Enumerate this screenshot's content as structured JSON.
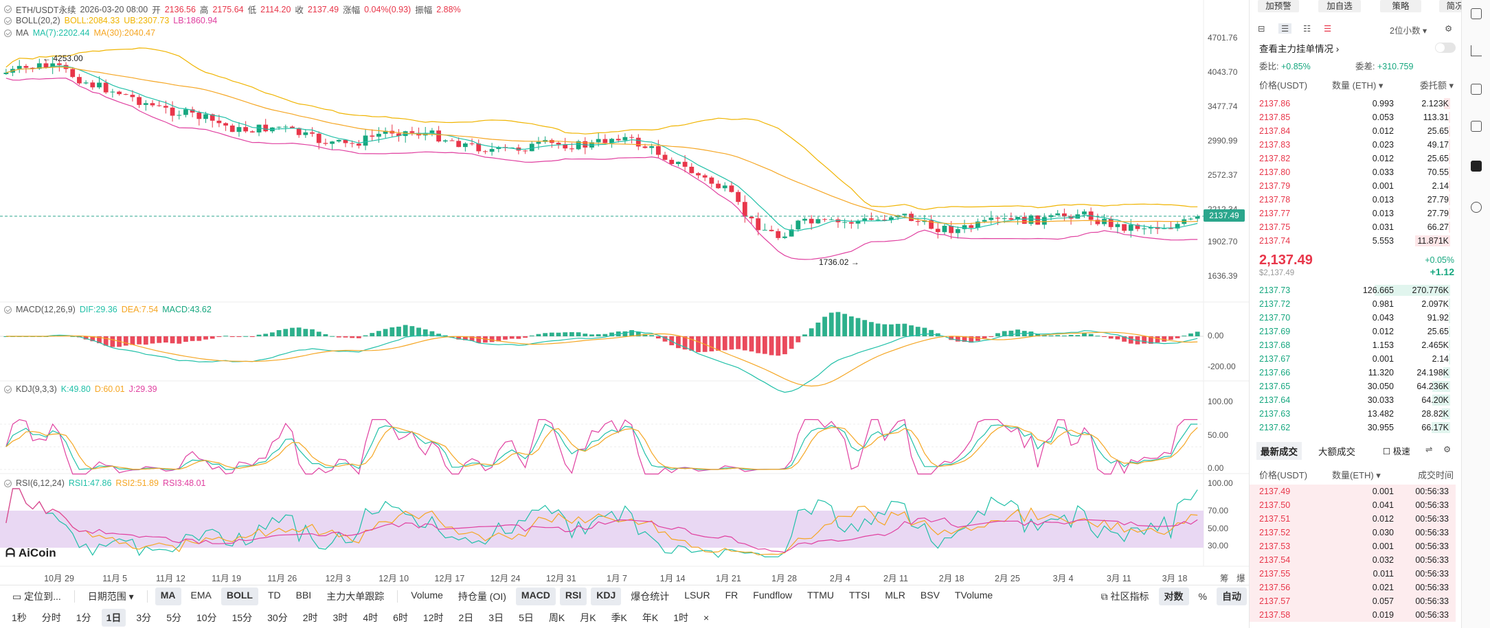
{
  "header": {
    "symbol": "ETH/USDT永续",
    "datetime": "2026-03-20 08:00",
    "open_label": "开",
    "open": "2136.56",
    "high_label": "高",
    "high": "2175.64",
    "low_label": "低",
    "low": "2114.20",
    "close_label": "收",
    "close": "2137.49",
    "change_label": "涨幅",
    "change": "0.04%(0.93)",
    "amplitude_label": "振幅",
    "amplitude": "2.88%"
  },
  "indicators": {
    "boll": {
      "name": "BOLL(20,2)",
      "mid": "BOLL:2084.33",
      "ub": "UB:2307.73",
      "lb": "LB:1860.94"
    },
    "ma": {
      "name": "MA",
      "ma7": "MA(7):2202.44",
      "ma30": "MA(30):2040.47"
    },
    "macd": {
      "name": "MACD(12,26,9)",
      "dif": "DIF:29.36",
      "dea": "DEA:7.54",
      "macd": "MACD:43.62"
    },
    "kdj": {
      "name": "KDJ(9,3,3)",
      "k": "K:49.80",
      "d": "D:60.01",
      "j": "J:29.39"
    },
    "rsi": {
      "name": "RSI(6,12,24)",
      "rsi1": "RSI1:47.86",
      "rsi2": "RSI2:51.89",
      "rsi3": "RSI3:48.01"
    }
  },
  "price_axis": [
    "4701.76",
    "4043.70",
    "3477.74",
    "2990.99",
    "2572.37",
    "2212.34",
    "1902.70",
    "1636.39"
  ],
  "current_price_tag": "2137.49",
  "annotations": {
    "high": "4253.00",
    "low": "1736.02"
  },
  "macd_axis": [
    "0.00",
    "-200.00"
  ],
  "kdj_axis": [
    "100.00",
    "50.00",
    "0.00"
  ],
  "rsi_axis": [
    "100.00",
    "70.00",
    "50.00",
    "30.00"
  ],
  "dates": [
    "10月 29",
    "11月 5",
    "11月 12",
    "11月 19",
    "11月 26",
    "12月 3",
    "12月 10",
    "12月 17",
    "12月 24",
    "12月 31",
    "1月 7",
    "1月 14",
    "1月 21",
    "1月 28",
    "2月 4",
    "2月 11",
    "2月 18",
    "2月 25",
    "3月 4",
    "3月 11",
    "3月 18"
  ],
  "axis_corner": [
    "筹",
    "爆"
  ],
  "logo": "AiCoin",
  "colors": {
    "up": "#16a77f",
    "down": "#e8364a",
    "boll_mid": "#f0b400",
    "boll_band": "#e040a0",
    "ma7": "#21c0a8",
    "ma30": "#f5a623",
    "rsi_band": "#e9d8f3"
  },
  "toolbar1": {
    "locate": "定位到...",
    "range": "日期范围",
    "main_inds": [
      {
        "label": "MA",
        "on": true
      },
      {
        "label": "EMA",
        "on": false
      },
      {
        "label": "BOLL",
        "on": true
      },
      {
        "label": "TD",
        "on": false
      },
      {
        "label": "BBI",
        "on": false
      },
      {
        "label": "主力大单跟踪",
        "on": false
      }
    ],
    "sub_inds": [
      {
        "label": "Volume",
        "on": false
      },
      {
        "label": "持仓量 (OI)",
        "on": false
      },
      {
        "label": "MACD",
        "on": true
      },
      {
        "label": "RSI",
        "on": true
      },
      {
        "label": "KDJ",
        "on": true
      },
      {
        "label": "爆仓统计",
        "on": false
      },
      {
        "label": "LSUR",
        "on": false
      },
      {
        "label": "FR",
        "on": false
      },
      {
        "label": "Fundflow",
        "on": false
      },
      {
        "label": "TTMU",
        "on": false
      },
      {
        "label": "TTSI",
        "on": false
      },
      {
        "label": "MLR",
        "on": false
      },
      {
        "label": "BSV",
        "on": false
      },
      {
        "label": "TVolume",
        "on": false
      }
    ],
    "community": "社区指标",
    "log": "对数",
    "pct": "%",
    "auto": "自动"
  },
  "timeframes": [
    {
      "label": "1秒",
      "on": false
    },
    {
      "label": "分时",
      "on": false
    },
    {
      "label": "1分",
      "on": false
    },
    {
      "label": "1日",
      "on": true
    },
    {
      "label": "3分",
      "on": false
    },
    {
      "label": "5分",
      "on": false
    },
    {
      "label": "10分",
      "on": false
    },
    {
      "label": "15分",
      "on": false
    },
    {
      "label": "30分",
      "on": false
    },
    {
      "label": "2时",
      "on": false
    },
    {
      "label": "3时",
      "on": false
    },
    {
      "label": "4时",
      "on": false
    },
    {
      "label": "6时",
      "on": false
    },
    {
      "label": "12时",
      "on": false
    },
    {
      "label": "2日",
      "on": false
    },
    {
      "label": "3日",
      "on": false
    },
    {
      "label": "5日",
      "on": false
    },
    {
      "label": "周K",
      "on": false
    },
    {
      "label": "月K",
      "on": false
    },
    {
      "label": "季K",
      "on": false
    },
    {
      "label": "年K",
      "on": false
    },
    {
      "label": "1时",
      "on": false
    }
  ],
  "close_x": "×",
  "right_panel": {
    "top_buttons": [
      "加预警",
      "加自选",
      "策略",
      "简况"
    ],
    "precision": "2位小数",
    "main_order_label": "查看主力挂单情况",
    "ratio_label": "委比:",
    "ratio": "+0.85%",
    "diff_label": "委差:",
    "diff": "+310.759",
    "cols": [
      "价格(USDT)",
      "数量 (ETH)",
      "委托额"
    ],
    "asks": [
      {
        "p": "2137.86",
        "q": "0.993",
        "t": "2.123K",
        "w": 0.08
      },
      {
        "p": "2137.85",
        "q": "0.053",
        "t": "113.31",
        "w": 0.01
      },
      {
        "p": "2137.84",
        "q": "0.012",
        "t": "25.65",
        "w": 0.01
      },
      {
        "p": "2137.83",
        "q": "0.023",
        "t": "49.17",
        "w": 0.01
      },
      {
        "p": "2137.82",
        "q": "0.012",
        "t": "25.65",
        "w": 0.01
      },
      {
        "p": "2137.80",
        "q": "0.033",
        "t": "70.55",
        "w": 0.01
      },
      {
        "p": "2137.79",
        "q": "0.001",
        "t": "2.14",
        "w": 0.005
      },
      {
        "p": "2137.78",
        "q": "0.013",
        "t": "27.79",
        "w": 0.01
      },
      {
        "p": "2137.77",
        "q": "0.013",
        "t": "27.79",
        "w": 0.01
      },
      {
        "p": "2137.75",
        "q": "0.031",
        "t": "66.27",
        "w": 0.01
      },
      {
        "p": "2137.74",
        "q": "5.553",
        "t": "11.871K",
        "w": 0.46
      }
    ],
    "last_price": "2,137.49",
    "last_usd": "$2,137.49",
    "last_pct": "+0.05%",
    "last_chg": "+1.12",
    "bids": [
      {
        "p": "2137.73",
        "q": "126.665",
        "t": "270.776K",
        "w": 1.0
      },
      {
        "p": "2137.72",
        "q": "0.981",
        "t": "2.097K",
        "w": 0.02
      },
      {
        "p": "2137.70",
        "q": "0.043",
        "t": "91.92",
        "w": 0.01
      },
      {
        "p": "2137.69",
        "q": "0.012",
        "t": "25.65",
        "w": 0.01
      },
      {
        "p": "2137.68",
        "q": "1.153",
        "t": "2.465K",
        "w": 0.02
      },
      {
        "p": "2137.67",
        "q": "0.001",
        "t": "2.14",
        "w": 0.005
      },
      {
        "p": "2137.66",
        "q": "11.320",
        "t": "24.198K",
        "w": 0.09
      },
      {
        "p": "2137.65",
        "q": "30.050",
        "t": "64.236K",
        "w": 0.24
      },
      {
        "p": "2137.64",
        "q": "30.033",
        "t": "64.20K",
        "w": 0.24
      },
      {
        "p": "2137.63",
        "q": "13.482",
        "t": "28.82K",
        "w": 0.11
      },
      {
        "p": "2137.62",
        "q": "30.955",
        "t": "66.17K",
        "w": 0.25
      }
    ],
    "trade_tabs": [
      "最新成交",
      "大额成交"
    ],
    "fast_label": "极速",
    "trade_cols": [
      "价格(USDT)",
      "数量(ETH)",
      "成交时间"
    ],
    "trades": [
      {
        "p": "2137.49",
        "q": "0.001",
        "t": "00:56:33"
      },
      {
        "p": "2137.50",
        "q": "0.041",
        "t": "00:56:33"
      },
      {
        "p": "2137.51",
        "q": "0.012",
        "t": "00:56:33"
      },
      {
        "p": "2137.52",
        "q": "0.030",
        "t": "00:56:33"
      },
      {
        "p": "2137.53",
        "q": "0.001",
        "t": "00:56:33"
      },
      {
        "p": "2137.54",
        "q": "0.032",
        "t": "00:56:33"
      },
      {
        "p": "2137.55",
        "q": "0.011",
        "t": "00:56:33"
      },
      {
        "p": "2137.56",
        "q": "0.021",
        "t": "00:56:33"
      },
      {
        "p": "2137.57",
        "q": "0.057",
        "t": "00:56:33"
      },
      {
        "p": "2137.58",
        "q": "0.019",
        "t": "00:56:33"
      }
    ]
  }
}
